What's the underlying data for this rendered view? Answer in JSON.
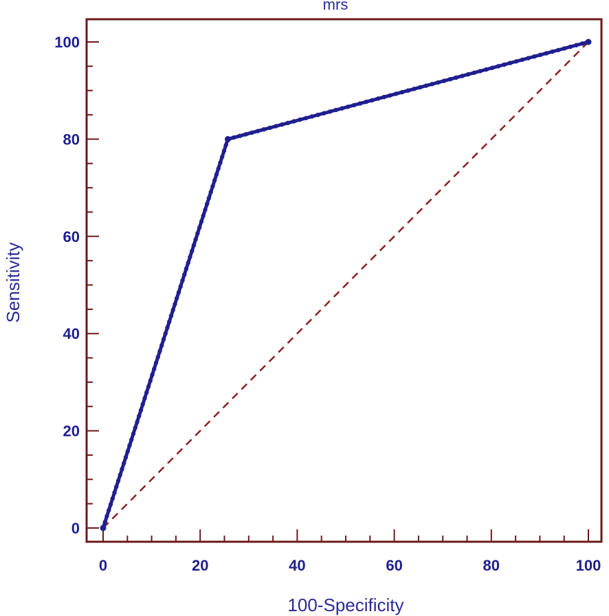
{
  "chart_data": {
    "type": "line",
    "title": "mrs",
    "xlabel": "100-Specificity",
    "ylabel": "Sensitivity",
    "xlim": [
      0,
      100
    ],
    "ylim": [
      0,
      100
    ],
    "x_ticks": [
      0,
      20,
      40,
      60,
      80,
      100
    ],
    "y_ticks": [
      0,
      20,
      40,
      60,
      80,
      100
    ],
    "grid": false,
    "legend": "none",
    "series": [
      {
        "x": [
          0,
          25.7,
          100
        ],
        "y": [
          0,
          80,
          100
        ],
        "color": "#1f1f8f",
        "style": "solid-markers"
      },
      {
        "x": [
          0,
          100
        ],
        "y": [
          0,
          100
        ],
        "color": "#8b2020",
        "style": "dashed"
      }
    ],
    "colors": {
      "axis": "#6b1a1a",
      "tick_label": "#1f1f8f",
      "axis_title": "#2a2a9a"
    }
  }
}
